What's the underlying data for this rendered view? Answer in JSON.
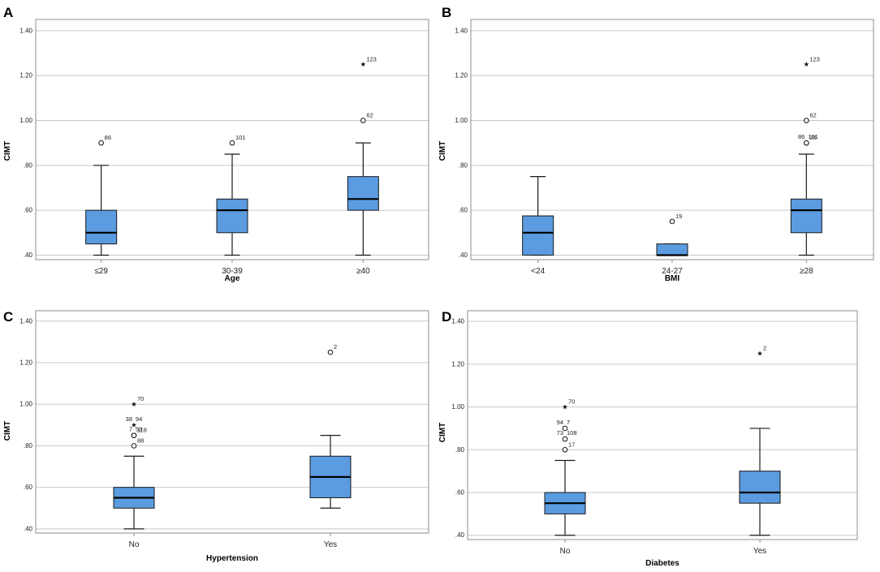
{
  "chart_data": [
    {
      "panel_label": "A",
      "type": "boxplot",
      "xlabel": "Age",
      "ylabel": "CIMT",
      "ylim": [
        0.38,
        1.45
      ],
      "yticks": [
        0.4,
        0.6,
        0.8,
        1.0,
        1.2,
        1.4
      ],
      "ytick_labels": [
        ".40",
        ".60",
        ".80",
        "1.00",
        "1.20",
        "1.40"
      ],
      "categories": [
        "≤29",
        "30-39",
        "≥40"
      ],
      "boxes": [
        {
          "min": 0.4,
          "q1": 0.45,
          "median": 0.5,
          "q3": 0.6,
          "max": 0.8
        },
        {
          "min": 0.4,
          "q1": 0.5,
          "median": 0.6,
          "q3": 0.65,
          "max": 0.85
        },
        {
          "min": 0.4,
          "q1": 0.6,
          "median": 0.65,
          "q3": 0.75,
          "max": 0.9
        }
      ],
      "outliers": [
        {
          "category": 0,
          "value": 0.9,
          "kind": "circle",
          "labels": [
            "86"
          ]
        },
        {
          "category": 1,
          "value": 0.9,
          "kind": "circle",
          "labels": [
            "101"
          ]
        },
        {
          "category": 2,
          "value": 1.0,
          "kind": "circle",
          "labels": [
            "62"
          ]
        },
        {
          "category": 2,
          "value": 1.25,
          "kind": "star",
          "labels": [
            "123"
          ]
        }
      ]
    },
    {
      "panel_label": "B",
      "type": "boxplot",
      "xlabel": "BMI",
      "ylabel": "CIMT",
      "ylim": [
        0.38,
        1.45
      ],
      "yticks": [
        0.4,
        0.6,
        0.8,
        1.0,
        1.2,
        1.4
      ],
      "ytick_labels": [
        ".40",
        ".60",
        ".80",
        "1.00",
        "1.20",
        "1.40"
      ],
      "categories": [
        "<24",
        "24-27",
        "≥28"
      ],
      "boxes": [
        {
          "min": 0.4,
          "q1": 0.4,
          "median": 0.5,
          "q3": 0.575,
          "max": 0.75
        },
        {
          "min": 0.4,
          "q1": 0.4,
          "median": 0.4,
          "q3": 0.45,
          "max": 0.45
        },
        {
          "min": 0.4,
          "q1": 0.5,
          "median": 0.6,
          "q3": 0.65,
          "max": 0.85
        }
      ],
      "outliers": [
        {
          "category": 1,
          "value": 0.55,
          "kind": "circle",
          "labels": [
            "19"
          ]
        },
        {
          "category": 2,
          "value": 0.9,
          "kind": "circle",
          "labels": [
            "26"
          ]
        },
        {
          "category": 2,
          "value": 0.9,
          "kind": "circle",
          "labels": [
            "86",
            "101"
          ]
        },
        {
          "category": 2,
          "value": 1.0,
          "kind": "circle",
          "labels": [
            "62"
          ]
        },
        {
          "category": 2,
          "value": 1.25,
          "kind": "star",
          "labels": [
            "123"
          ]
        }
      ]
    },
    {
      "panel_label": "C",
      "type": "boxplot",
      "xlabel": "Hypertension",
      "ylabel": "CIMT",
      "ylim": [
        0.38,
        1.45
      ],
      "yticks": [
        0.4,
        0.6,
        0.8,
        1.0,
        1.2,
        1.4
      ],
      "ytick_labels": [
        ".40",
        ".60",
        ".80",
        "1.00",
        "1.20",
        "1.40"
      ],
      "categories": [
        "No",
        "Yes"
      ],
      "boxes": [
        {
          "min": 0.4,
          "q1": 0.5,
          "median": 0.55,
          "q3": 0.6,
          "max": 0.75
        },
        {
          "min": 0.5,
          "q1": 0.55,
          "median": 0.65,
          "q3": 0.75,
          "max": 0.85
        }
      ],
      "outliers": [
        {
          "category": 0,
          "value": 0.8,
          "kind": "circle",
          "labels": [
            "88"
          ]
        },
        {
          "category": 0,
          "value": 0.85,
          "kind": "circle",
          "labels": [
            "118"
          ]
        },
        {
          "category": 0,
          "value": 0.85,
          "kind": "circle",
          "labels": [
            "7",
            "53"
          ]
        },
        {
          "category": 0,
          "value": 0.9,
          "kind": "star",
          "labels": [
            "38",
            "94"
          ]
        },
        {
          "category": 0,
          "value": 1.0,
          "kind": "star",
          "labels": [
            "70"
          ]
        },
        {
          "category": 1,
          "value": 1.25,
          "kind": "circle",
          "labels": [
            "2"
          ]
        }
      ]
    },
    {
      "panel_label": "D",
      "type": "boxplot",
      "xlabel": "Diabetes",
      "ylabel": "CIMT",
      "ylim": [
        0.38,
        1.45
      ],
      "yticks": [
        0.4,
        0.6,
        0.8,
        1.0,
        1.2,
        1.4
      ],
      "ytick_labels": [
        ".40",
        ".60",
        ".80",
        "1.00",
        "1.20",
        "1.40"
      ],
      "categories": [
        "No",
        "Yes"
      ],
      "boxes": [
        {
          "min": 0.4,
          "q1": 0.5,
          "median": 0.55,
          "q3": 0.6,
          "max": 0.75
        },
        {
          "min": 0.4,
          "q1": 0.55,
          "median": 0.6,
          "q3": 0.7,
          "max": 0.9
        }
      ],
      "outliers": [
        {
          "category": 0,
          "value": 0.8,
          "kind": "circle",
          "labels": [
            "17"
          ]
        },
        {
          "category": 0,
          "value": 0.85,
          "kind": "circle",
          "labels": [
            "73",
            "108"
          ]
        },
        {
          "category": 0,
          "value": 0.9,
          "kind": "circle",
          "labels": [
            "94",
            "7"
          ]
        },
        {
          "category": 0,
          "value": 1.0,
          "kind": "star",
          "labels": [
            "70"
          ]
        },
        {
          "category": 1,
          "value": 1.25,
          "kind": "star",
          "labels": [
            "2"
          ]
        }
      ]
    }
  ],
  "colors": {
    "box_fill": "#5b9be0",
    "box_stroke": "#1a1a1a",
    "grid": "#c8c8c8",
    "frame": "#8c8c8c"
  }
}
